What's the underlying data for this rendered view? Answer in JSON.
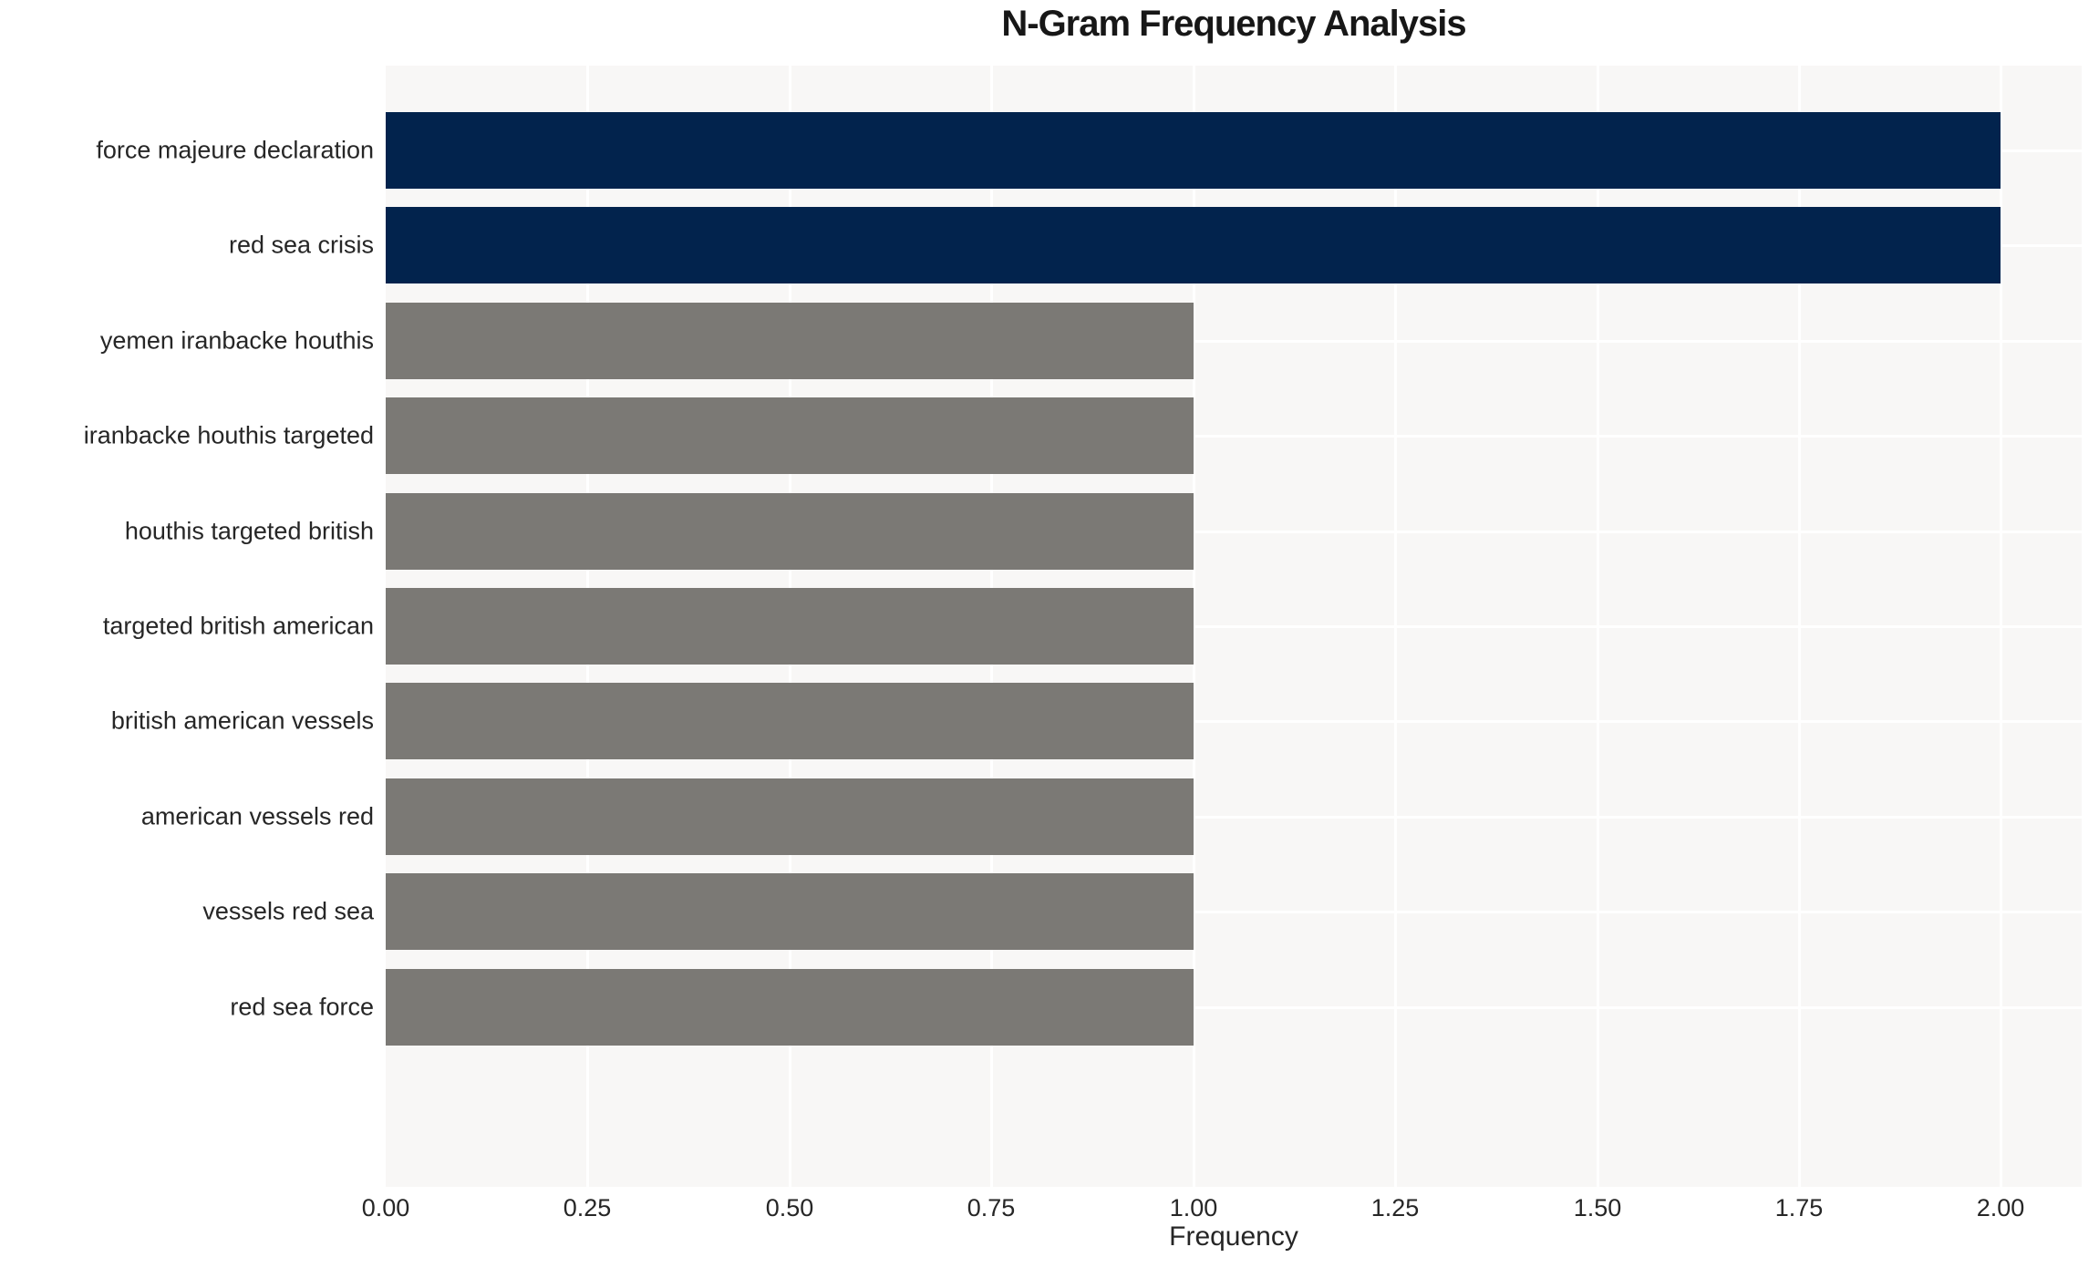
{
  "chart_data": {
    "type": "bar",
    "orientation": "horizontal",
    "title": "N-Gram Frequency Analysis",
    "xlabel": "Frequency",
    "ylabel": "",
    "categories": [
      "force majeure declaration",
      "red sea crisis",
      "yemen iranbacke houthis",
      "iranbacke houthis targeted",
      "houthis targeted british",
      "targeted british american",
      "british american vessels",
      "american vessels red",
      "vessels red sea",
      "red sea force"
    ],
    "values": [
      2,
      2,
      1,
      1,
      1,
      1,
      1,
      1,
      1,
      1
    ],
    "bar_colors": [
      "#02234d",
      "#02234d",
      "#7b7975",
      "#7b7975",
      "#7b7975",
      "#7b7975",
      "#7b7975",
      "#7b7975",
      "#7b7975",
      "#7b7975"
    ],
    "xticks": [
      "0.00",
      "0.25",
      "0.50",
      "0.75",
      "1.00",
      "1.25",
      "1.50",
      "1.75",
      "2.00"
    ],
    "xtick_values": [
      0,
      0.25,
      0.5,
      0.75,
      1.0,
      1.25,
      1.5,
      1.75,
      2.0
    ],
    "xlim": [
      0,
      2.1
    ],
    "grid": true,
    "legend": false,
    "colors": {
      "highlight_bar": "#02234d",
      "default_bar": "#7b7975",
      "plot_background": "#f8f7f6",
      "grid_color": "#ffffff",
      "text_color": "#262626",
      "title_color": "#171717",
      "figure_background": "#ffffff"
    }
  }
}
